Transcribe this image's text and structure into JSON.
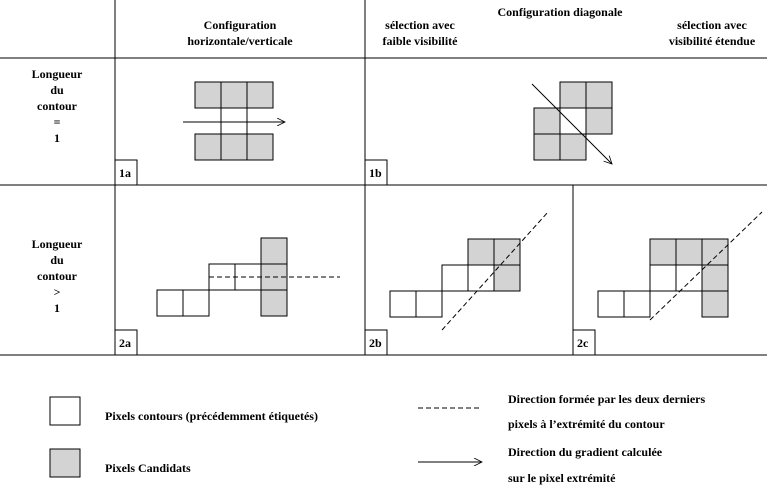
{
  "header": {
    "col1": [
      "Configuration",
      "horizontale/verticale"
    ],
    "col2_title": "Configuration diagonale",
    "col2a": [
      "sélection avec",
      "faible visibilité"
    ],
    "col2b": [
      "sélection avec",
      "visibilité étendue"
    ]
  },
  "rows": [
    {
      "label": [
        "Longueur",
        "du",
        "contour",
        "=",
        "1"
      ]
    },
    {
      "label": [
        "Longueur",
        "du",
        "contour",
        ">",
        "1"
      ]
    }
  ],
  "cells": [
    "1a",
    "1b",
    "2a",
    "2b",
    "2c"
  ],
  "legend": {
    "contour": "Pixels contours (précédemment étiquetés)",
    "candidate": "Pixels Candidats",
    "direction": [
      "Direction formée par les deux derniers",
      "pixels à l’extrémité du contour"
    ],
    "gradient": [
      "Direction du gradient calculée",
      "sur le pixel extrémité"
    ]
  }
}
